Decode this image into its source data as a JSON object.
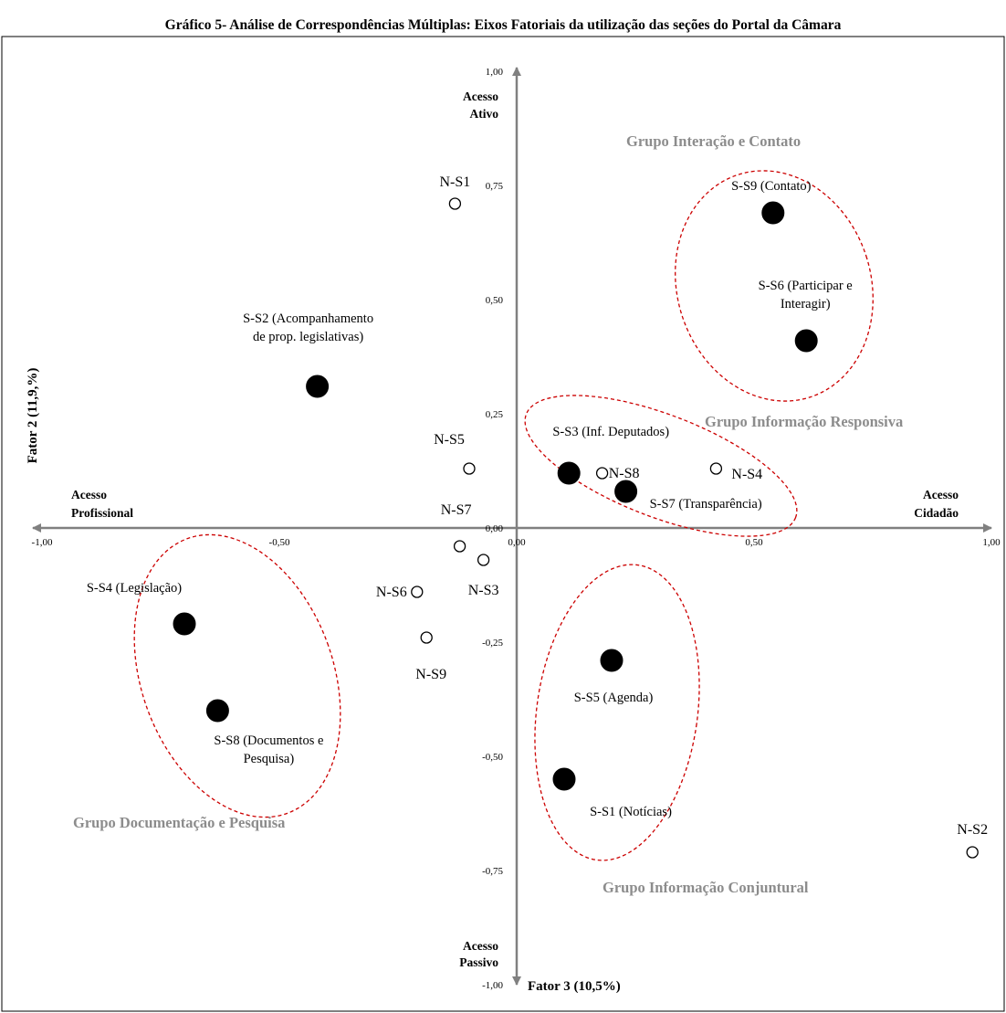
{
  "title": "Gráfico 5- Análise de Correspondências Múltiplas: Eixos Fatoriais da utilização das seções do Portal da Câmara",
  "chart_data": {
    "type": "scatter",
    "xlabel": "Fator 3 (10,5%)",
    "ylabel": "Fator 2 (11,9,%)",
    "xlim": [
      -1.0,
      1.0
    ],
    "ylim": [
      -1.0,
      1.0
    ],
    "x_ticks": [
      "-1,00",
      "-0,50",
      "0,00",
      "0,50",
      "1,00"
    ],
    "y_ticks": [
      "1,00",
      "0,75",
      "0,50",
      "0,25",
      "0,00",
      "-0,25",
      "-0,50",
      "-0,75",
      "-1,00"
    ],
    "grid": false,
    "legend": "none",
    "direction_labels": {
      "left": [
        "Acesso",
        "Profissional"
      ],
      "right": [
        "Acesso",
        "Cidadão"
      ],
      "top": [
        "Acesso",
        "Ativo"
      ],
      "bottom": [
        "Acesso",
        "Passivo"
      ]
    },
    "series": [
      {
        "marker": "filled-circle",
        "points": [
          {
            "label": [
              "S-S1 (Notícias)"
            ],
            "x": 0.1,
            "y": -0.55
          },
          {
            "label": [
              "S-S2 (Acompanhamento",
              "de prop. legislativas)"
            ],
            "x": -0.42,
            "y": 0.31
          },
          {
            "label": [
              "S-S3 (Inf. Deputados)"
            ],
            "x": 0.11,
            "y": 0.12
          },
          {
            "label": [
              "S-S4 (Legislação)"
            ],
            "x": -0.7,
            "y": -0.21
          },
          {
            "label": [
              "S-S5 (Agenda)"
            ],
            "x": 0.2,
            "y": -0.29
          },
          {
            "label": [
              "S-S6 (Participar e",
              "Interagir)"
            ],
            "x": 0.61,
            "y": 0.41
          },
          {
            "label": [
              "S-S7 (Transparência)"
            ],
            "x": 0.23,
            "y": 0.08
          },
          {
            "label": [
              "S-S8 (Documentos e",
              "Pesquisa)"
            ],
            "x": -0.63,
            "y": -0.4
          },
          {
            "label": [
              "S-S9 (Contato)"
            ],
            "x": 0.54,
            "y": 0.69
          }
        ]
      },
      {
        "marker": "open-circle",
        "points": [
          {
            "label": [
              "N-S1"
            ],
            "x": -0.13,
            "y": 0.71
          },
          {
            "label": [
              "N-S2"
            ],
            "x": 0.96,
            "y": -0.71
          },
          {
            "label": [
              "N-S3"
            ],
            "x": -0.07,
            "y": -0.07
          },
          {
            "label": [
              "N-S4"
            ],
            "x": 0.42,
            "y": 0.13
          },
          {
            "label": [
              "N-S5"
            ],
            "x": -0.1,
            "y": 0.13
          },
          {
            "label": [
              "N-S6"
            ],
            "x": -0.21,
            "y": -0.14
          },
          {
            "label": [
              "N-S7"
            ],
            "x": -0.12,
            "y": -0.04
          },
          {
            "label": [
              "N-S8"
            ],
            "x": 0.18,
            "y": 0.12
          },
          {
            "label": [
              "N-S9"
            ],
            "x": -0.19,
            "y": -0.24
          }
        ]
      }
    ],
    "annotations": [
      {
        "text": "Grupo Interação e Contato"
      },
      {
        "text": "Grupo Informação Responsiva"
      },
      {
        "text": "Grupo Documentação e Pesquisa"
      },
      {
        "text": "Grupo Informação Conjuntural"
      }
    ]
  }
}
